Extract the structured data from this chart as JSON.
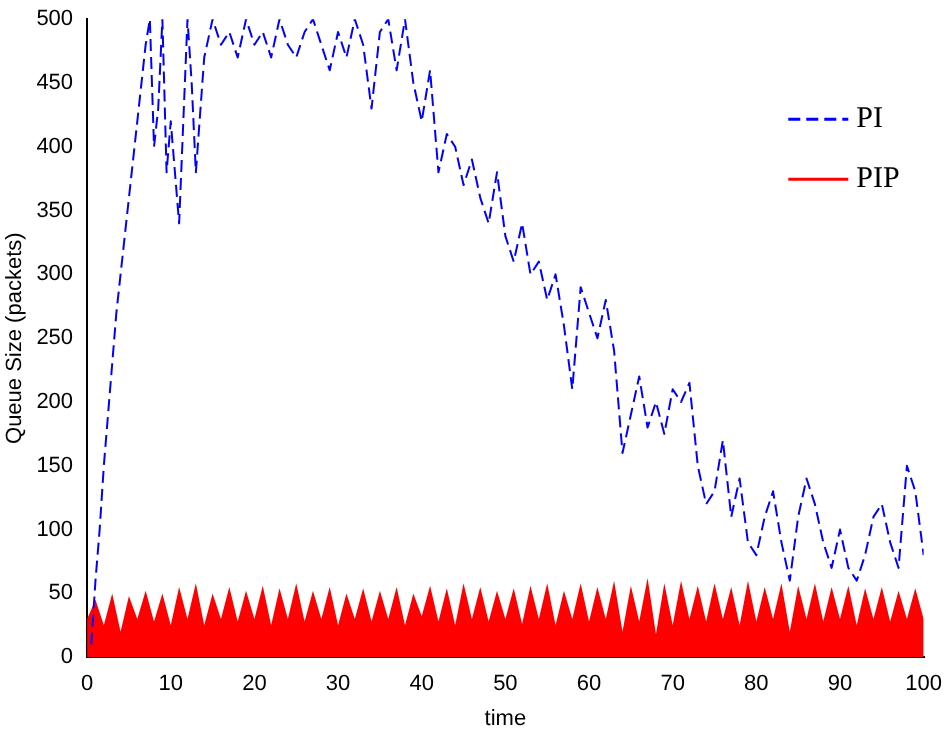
{
  "chart_data": {
    "type": "line",
    "xlabel": "time",
    "ylabel": "Queue Size (packets)",
    "xlim": [
      0,
      100
    ],
    "xticks": [
      0,
      10,
      20,
      30,
      40,
      50,
      60,
      70,
      80,
      90,
      100
    ],
    "ylim": [
      0,
      500
    ],
    "yticks": [
      0,
      50,
      100,
      150,
      200,
      250,
      300,
      350,
      400,
      450,
      500
    ],
    "grid": false,
    "legend": "top right",
    "series": [
      {
        "name": "PI",
        "color": "#0000ff",
        "line_style": "dashed",
        "x": [
          0.5,
          1,
          1.5,
          2,
          2.5,
          3,
          3.5,
          4,
          5,
          6,
          7,
          7.5,
          8,
          8.5,
          9,
          9.5,
          10,
          11,
          12,
          12.5,
          13,
          14,
          15,
          16,
          17,
          18,
          19,
          20,
          21,
          22,
          23,
          24,
          25,
          26,
          27,
          28,
          29,
          30,
          31,
          32,
          33,
          34,
          35,
          36,
          37,
          38,
          39,
          40,
          41,
          42,
          43,
          44,
          45,
          46,
          47,
          48,
          49,
          50,
          51,
          52,
          53,
          54,
          55,
          56,
          57,
          58,
          59,
          60,
          61,
          62,
          63,
          64,
          65,
          66,
          67,
          68,
          69,
          70,
          71,
          72,
          73,
          74,
          75,
          76,
          77,
          78,
          79,
          80,
          81,
          82,
          83,
          84,
          85,
          86,
          87,
          88,
          89,
          90,
          91,
          92,
          93,
          94,
          95,
          96,
          97,
          98,
          99,
          100
        ],
        "values": [
          10,
          60,
          100,
          150,
          190,
          230,
          270,
          300,
          360,
          420,
          480,
          500,
          400,
          430,
          500,
          380,
          420,
          340,
          500,
          450,
          380,
          470,
          500,
          480,
          490,
          470,
          500,
          480,
          490,
          470,
          500,
          480,
          470,
          490,
          500,
          480,
          460,
          490,
          470,
          500,
          480,
          430,
          490,
          500,
          460,
          500,
          450,
          420,
          460,
          380,
          410,
          400,
          370,
          390,
          360,
          340,
          380,
          330,
          310,
          340,
          300,
          310,
          280,
          300,
          260,
          210,
          290,
          270,
          250,
          280,
          240,
          160,
          190,
          220,
          180,
          200,
          175,
          210,
          200,
          215,
          150,
          120,
          130,
          170,
          110,
          140,
          90,
          80,
          110,
          130,
          90,
          60,
          110,
          140,
          120,
          90,
          70,
          100,
          70,
          60,
          80,
          110,
          120,
          90,
          70,
          150,
          130,
          80
        ]
      },
      {
        "name": "PIP",
        "type": "area",
        "color": "#ff0000",
        "x": [
          0,
          1,
          2,
          3,
          4,
          5,
          6,
          7,
          8,
          9,
          10,
          11,
          12,
          13,
          14,
          15,
          16,
          17,
          18,
          19,
          20,
          21,
          22,
          23,
          24,
          25,
          26,
          27,
          28,
          29,
          30,
          31,
          32,
          33,
          34,
          35,
          36,
          37,
          38,
          39,
          40,
          41,
          42,
          43,
          44,
          45,
          46,
          47,
          48,
          49,
          50,
          51,
          52,
          53,
          54,
          55,
          56,
          57,
          58,
          59,
          60,
          61,
          62,
          63,
          64,
          65,
          66,
          67,
          68,
          69,
          70,
          71,
          72,
          73,
          74,
          75,
          76,
          77,
          78,
          79,
          80,
          81,
          82,
          83,
          84,
          85,
          86,
          87,
          88,
          89,
          90,
          91,
          92,
          93,
          94,
          95,
          96,
          97,
          98,
          99,
          100
        ],
        "values": [
          30,
          45,
          25,
          50,
          20,
          48,
          30,
          52,
          28,
          50,
          25,
          55,
          30,
          58,
          25,
          50,
          30,
          55,
          28,
          52,
          30,
          56,
          25,
          54,
          30,
          58,
          28,
          52,
          30,
          55,
          25,
          50,
          30,
          54,
          28,
          52,
          30,
          55,
          25,
          50,
          32,
          56,
          28,
          54,
          25,
          58,
          30,
          55,
          28,
          52,
          30,
          54,
          26,
          56,
          30,
          58,
          25,
          52,
          30,
          58,
          28,
          55,
          30,
          60,
          20,
          56,
          28,
          62,
          18,
          58,
          25,
          60,
          30,
          56,
          28,
          58,
          30,
          55,
          25,
          60,
          28,
          55,
          30,
          58,
          20,
          56,
          30,
          58,
          28,
          55,
          30,
          56,
          25,
          54,
          30,
          55,
          28,
          52,
          30,
          54,
          30
        ]
      }
    ]
  }
}
